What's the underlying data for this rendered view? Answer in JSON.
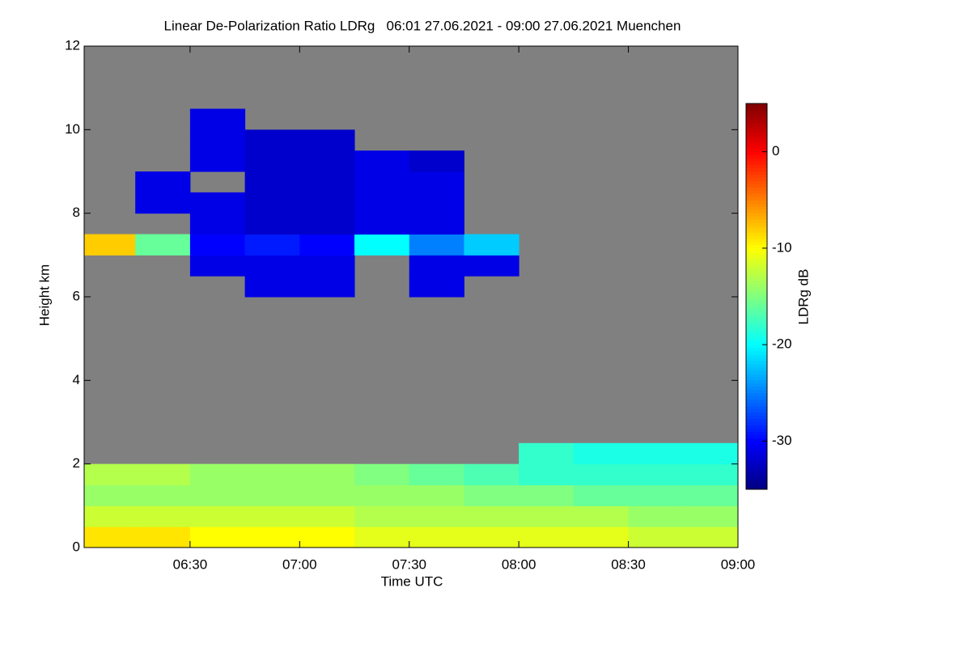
{
  "chart_data": {
    "type": "heatmap",
    "title": "Linear De-Polarization Ratio LDRg   06:01 27.06.2021 - 09:00 27.06.2021 Muenchen",
    "x_label": "Time UTC",
    "y_label": "Height km",
    "colorbar_label": "LDRg dB",
    "xlim": [
      6.0167,
      9.0
    ],
    "ylim": [
      0,
      12
    ],
    "xticks": [
      {
        "value": 6.5,
        "label": "06:30"
      },
      {
        "value": 7.0,
        "label": "07:00"
      },
      {
        "value": 7.5,
        "label": "07:30"
      },
      {
        "value": 8.0,
        "label": "08:00"
      },
      {
        "value": 8.5,
        "label": "08:30"
      },
      {
        "value": 9.0,
        "label": "09:00"
      }
    ],
    "yticks": [
      0,
      2,
      4,
      6,
      8,
      10,
      12
    ],
    "zlim": [
      -35,
      5
    ],
    "zticks": [
      0,
      -10,
      -20,
      -30
    ],
    "colormap": "jet",
    "background": "#808080",
    "x_bins": [
      6.0,
      6.25,
      6.5,
      6.75,
      7.0,
      7.25,
      7.5,
      7.75,
      8.0,
      8.25,
      8.5,
      8.75,
      9.0
    ],
    "y_bins": [
      0,
      0.5,
      1,
      1.5,
      2,
      2.5,
      3,
      3.5,
      4,
      4.5,
      5,
      5.5,
      6,
      6.5,
      7,
      7.5,
      8,
      8.5,
      9,
      9.5,
      10,
      10.5,
      11,
      11.5,
      12
    ],
    "z": [
      [
        -9,
        -9,
        -10,
        -10,
        -10,
        -11,
        -11,
        -11,
        -11,
        -11,
        -12,
        -12
      ],
      [
        -12,
        -12,
        -12,
        -12,
        -12,
        -13,
        -13,
        -13,
        -13,
        -13,
        -14,
        -14
      ],
      [
        -14,
        -14,
        -14,
        -14,
        -14,
        -14,
        -14,
        -15,
        -15,
        -16,
        -16,
        -16
      ],
      [
        -13,
        -13,
        -14,
        -14,
        -14,
        -15,
        -16,
        -17,
        -18,
        -18,
        -18,
        -18
      ],
      [
        null,
        null,
        null,
        null,
        null,
        null,
        null,
        null,
        -18,
        -19,
        -19,
        -19
      ],
      [
        null,
        null,
        null,
        null,
        null,
        null,
        null,
        null,
        null,
        null,
        null,
        null
      ],
      [
        null,
        null,
        null,
        null,
        null,
        null,
        null,
        null,
        null,
        null,
        null,
        null
      ],
      [
        null,
        null,
        null,
        null,
        null,
        null,
        null,
        null,
        null,
        null,
        null,
        null
      ],
      [
        null,
        null,
        null,
        null,
        null,
        null,
        null,
        null,
        null,
        null,
        null,
        null
      ],
      [
        null,
        null,
        null,
        null,
        null,
        null,
        null,
        null,
        null,
        null,
        null,
        null
      ],
      [
        null,
        null,
        null,
        null,
        null,
        null,
        null,
        null,
        null,
        null,
        null,
        null
      ],
      [
        null,
        null,
        null,
        null,
        null,
        null,
        null,
        null,
        null,
        null,
        null,
        null
      ],
      [
        null,
        null,
        null,
        -31,
        -31,
        null,
        -31,
        null,
        null,
        null,
        null,
        null
      ],
      [
        null,
        null,
        -31,
        -31,
        -31,
        null,
        -31,
        -31,
        null,
        null,
        null,
        null
      ],
      [
        -8,
        -16,
        -30,
        -29,
        -30,
        -20,
        -25,
        -22,
        null,
        null,
        null,
        null
      ],
      [
        null,
        null,
        -31,
        -32,
        -32,
        -31,
        -31,
        null,
        null,
        null,
        null,
        null
      ],
      [
        null,
        -31,
        -31,
        -32,
        -32,
        -31,
        -31,
        null,
        null,
        null,
        null,
        null
      ],
      [
        null,
        -31,
        null,
        -32,
        -32,
        -31,
        -31,
        null,
        null,
        null,
        null,
        null
      ],
      [
        null,
        null,
        -31,
        -32,
        -32,
        -31,
        -32,
        null,
        null,
        null,
        null,
        null
      ],
      [
        null,
        null,
        -31,
        -32,
        -32,
        null,
        null,
        null,
        null,
        null,
        null,
        null
      ],
      [
        null,
        null,
        -31,
        null,
        null,
        null,
        null,
        null,
        null,
        null,
        null,
        null
      ],
      [
        null,
        null,
        null,
        null,
        null,
        null,
        null,
        null,
        null,
        null,
        null,
        null
      ],
      [
        null,
        null,
        null,
        null,
        null,
        null,
        null,
        null,
        null,
        null,
        null,
        null
      ],
      [
        null,
        null,
        null,
        null,
        null,
        null,
        null,
        null,
        null,
        null,
        null,
        null
      ]
    ]
  }
}
